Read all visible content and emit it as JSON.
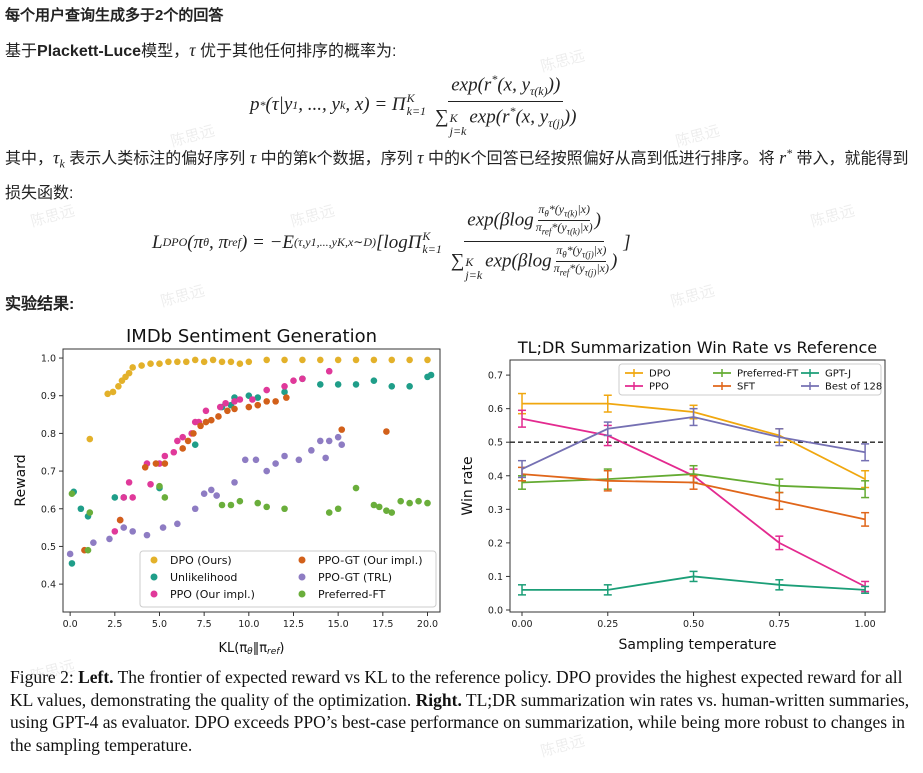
{
  "heading": "每个用户查询生成多于2个的回答",
  "paragraph_1": [
    "基于",
    "Plackett-Luce",
    "模型，",
    "τ",
    " 优于其他任何排序的概率为:"
  ],
  "formula_1": {
    "lhs": [
      "p",
      "*",
      "(τ|y",
      "1",
      ", ..., y",
      "k",
      ", x) = Π",
      "K",
      "k=1"
    ],
    "numerator": [
      "exp(r",
      "*",
      "(x, y",
      "τ(k)",
      "))"
    ],
    "denominator": [
      "∑",
      "K",
      "j=k",
      "exp(r",
      "*",
      "(x, y",
      "τ(j)",
      "))"
    ]
  },
  "paragraph_2": [
    "其中，",
    "τ",
    "k",
    " 表示人类标注的偏好序列 ",
    "τ",
    " 中的第k个数据，序列 ",
    "τ",
    " 中的K个回答已经按照偏好从高到低进行排序。将 ",
    "r",
    "*",
    " 带入，就能得到损失函数:"
  ],
  "formula_2": {
    "lhs": [
      "L",
      "DPO",
      "(π",
      "θ",
      ", π",
      "ref",
      ") = −E",
      "(τ,y1,...,yK,x∼D)",
      "[logΠ",
      "K",
      "k=1"
    ],
    "numerator": {
      "pre": "exp(βlog",
      "top": [
        "π",
        "θ",
        "*(y",
        "τ(k)",
        "|x)"
      ],
      "bottom": [
        "π",
        "ref",
        "*(y",
        "τ(k)",
        "|x)"
      ],
      "post": ")"
    },
    "denominator": {
      "sum": "∑",
      "upper": "K",
      "lower": "j=k",
      "pre": "exp(βlog",
      "top": [
        "π",
        "θ",
        "*(y",
        "τ(j)",
        "|x)"
      ],
      "bottom": [
        "π",
        "ref",
        "*(y",
        "τ(j)",
        "|x)"
      ],
      "post": ")"
    },
    "close": "]"
  },
  "results_heading": "实验结果:",
  "watermark": "陈思远",
  "caption": [
    "Figure 2: ",
    "Left.",
    " The frontier of expected reward vs KL to the reference policy. DPO provides the highest expected reward for all KL values, demonstrating the quality of the optimization. ",
    "Right.",
    " TL;DR summarization win rates vs. human-written summaries, using GPT-4 as evaluator. DPO exceeds PPO’s best-case performance on summarization, while being more robust to changes in the sampling temperature."
  ],
  "chart_data": [
    {
      "type": "scatter",
      "title": "IMDb Sentiment Generation",
      "xlabel": [
        "KL(π",
        "θ",
        "‖π",
        "ref",
        ")"
      ],
      "ylabel": "Reward",
      "xlim": [
        -0.4,
        20.7
      ],
      "ylim": [
        0.326,
        1.024
      ],
      "xticks": [
        {
          "value": 0,
          "label": "0.0"
        },
        2.5,
        {
          "value": 5,
          "label": "5.0"
        },
        7.5,
        {
          "value": 10,
          "label": "10.0"
        },
        12.5,
        {
          "value": 15,
          "label": "15.0"
        },
        17.5,
        {
          "value": 20,
          "label": "20.0"
        }
      ],
      "yticks": [
        0.4,
        0.5,
        0.6,
        0.7,
        0.8,
        0.9,
        {
          "value": 1,
          "label": "1.0"
        }
      ],
      "legend": "lower right",
      "legend_columns": 2,
      "series": [
        {
          "name": "DPO (Ours)",
          "color": "#e3b12a",
          "x": [
            1.1,
            2.1,
            2.4,
            2.7,
            2.9,
            3.1,
            3.3,
            3.5,
            4.0,
            4.5,
            5.0,
            5.5,
            6.0,
            6.5,
            7.0,
            7.5,
            8.0,
            8.5,
            9.0,
            9.5,
            10,
            11,
            12,
            13,
            14,
            15,
            16,
            17,
            18,
            19,
            20
          ],
          "values": [
            0.785,
            0.905,
            0.91,
            0.925,
            0.94,
            0.95,
            0.96,
            0.975,
            0.98,
            0.985,
            0.985,
            0.99,
            0.99,
            0.99,
            0.995,
            0.99,
            0.995,
            0.99,
            0.99,
            0.985,
            0.99,
            0.995,
            0.995,
            0.995,
            0.995,
            0.995,
            0.995,
            0.995,
            0.995,
            0.995,
            0.995
          ]
        },
        {
          "name": "Unlikelihood",
          "color": "#1f9e89",
          "x": [
            0.1,
            0.2,
            0.6,
            1.0,
            2.5,
            3.0,
            5.0,
            7.0,
            8.5,
            9.0,
            9.2,
            10,
            10.5,
            12,
            13,
            14,
            15,
            16,
            17,
            18,
            19,
            20,
            20.2
          ],
          "values": [
            0.455,
            0.645,
            0.6,
            0.58,
            0.63,
            0.63,
            0.655,
            0.77,
            0.87,
            0.875,
            0.895,
            0.9,
            0.895,
            0.91,
            0.945,
            0.93,
            0.93,
            0.93,
            0.94,
            0.925,
            0.925,
            0.95,
            0.955
          ]
        },
        {
          "name": "PPO (Our impl.)",
          "color": "#e0399a",
          "x": [
            2.5,
            2.8,
            3.0,
            3.3,
            3.5,
            4.3,
            4.5,
            5.0,
            5.3,
            5.8,
            6.0,
            6.3,
            6.8,
            7.0,
            7.2,
            7.6,
            8.4,
            8.7,
            9.2,
            9.5,
            10.2,
            11,
            12,
            12.5,
            13,
            14.5
          ],
          "values": [
            0.54,
            0.57,
            0.63,
            0.67,
            0.63,
            0.72,
            0.665,
            0.72,
            0.74,
            0.75,
            0.78,
            0.79,
            0.8,
            0.83,
            0.83,
            0.86,
            0.87,
            0.88,
            0.885,
            0.89,
            0.89,
            0.915,
            0.925,
            0.94,
            0.945,
            0.965
          ]
        },
        {
          "name": "PPO-GT (Our impl.)",
          "color": "#d2601a",
          "x": [
            0.8,
            2.8,
            4.2,
            4.8,
            5.3,
            6.3,
            6.6,
            6.9,
            7.3,
            7.6,
            7.9,
            8.3,
            8.8,
            9.2,
            10,
            10.5,
            11,
            11.5,
            12.1,
            15.2,
            17.7
          ],
          "values": [
            0.49,
            0.57,
            0.71,
            0.72,
            0.72,
            0.76,
            0.78,
            0.8,
            0.82,
            0.83,
            0.835,
            0.845,
            0.86,
            0.865,
            0.87,
            0.875,
            0.885,
            0.885,
            0.895,
            0.81,
            0.805
          ]
        },
        {
          "name": "PPO-GT (TRL)",
          "color": "#8e7cc3",
          "x": [
            0,
            1.3,
            2.2,
            3.0,
            3.5,
            4.3,
            5.2,
            6.0,
            7.0,
            7.5,
            7.9,
            8.2,
            9.2,
            9.8,
            10.4,
            11,
            11.5,
            12,
            12.8,
            13.5,
            14,
            14.3,
            14.5,
            15,
            15.2
          ],
          "values": [
            0.48,
            0.51,
            0.52,
            0.55,
            0.54,
            0.53,
            0.55,
            0.56,
            0.6,
            0.64,
            0.65,
            0.635,
            0.67,
            0.73,
            0.73,
            0.7,
            0.72,
            0.74,
            0.73,
            0.755,
            0.78,
            0.735,
            0.78,
            0.79,
            0.77
          ]
        },
        {
          "name": "Preferred-FT",
          "color": "#6aae3b",
          "x": [
            0.1,
            1.0,
            1.1,
            5.0,
            5.3,
            8.5,
            9.0,
            9.5,
            10.5,
            11,
            12,
            14.5,
            15,
            16,
            17,
            17.3,
            17.7,
            18,
            18.5,
            19,
            19.5,
            20
          ],
          "values": [
            0.64,
            0.49,
            0.59,
            0.66,
            0.63,
            0.61,
            0.61,
            0.62,
            0.615,
            0.605,
            0.6,
            0.59,
            0.6,
            0.655,
            0.61,
            0.605,
            0.595,
            0.59,
            0.62,
            0.615,
            0.62,
            0.615
          ]
        }
      ]
    },
    {
      "type": "line",
      "title": "TL;DR Summarization Win Rate vs Reference",
      "xlabel": "Sampling temperature",
      "ylabel": "Win rate",
      "x": [
        0,
        0.25,
        0.5,
        0.75,
        1
      ],
      "xlim": [
        -0.035,
        1.058
      ],
      "ylim": [
        -0.006,
        0.745
      ],
      "xticks": [
        {
          "value": 0,
          "label": "0.00"
        },
        0.25,
        {
          "value": 0.5,
          "label": "0.50"
        },
        0.75,
        {
          "value": 1,
          "label": "1.00"
        }
      ],
      "yticks": [
        {
          "value": 0,
          "label": "0.0"
        },
        0.1,
        0.2,
        0.3,
        0.4,
        0.5,
        0.6,
        0.7
      ],
      "hline": 0.5,
      "legend": "upper right",
      "legend_columns": 3,
      "series": [
        {
          "name": "DPO",
          "color": "#f0a70f",
          "values": [
            0.615,
            0.615,
            0.59,
            0.52,
            0.39
          ],
          "errors": [
            0.03,
            0.025,
            0.02,
            0.02,
            0.025
          ]
        },
        {
          "name": "PPO",
          "color": "#e32a8f",
          "values": [
            0.57,
            0.52,
            0.4,
            0.2,
            0.07
          ],
          "errors": [
            0.025,
            0.03,
            0.02,
            0.02,
            0.015
          ]
        },
        {
          "name": "Preferred-FT",
          "color": "#64ab32",
          "values": [
            0.38,
            0.39,
            0.405,
            0.37,
            0.36
          ],
          "errors": [
            0.02,
            0.03,
            0.025,
            0.02,
            0.025
          ]
        },
        {
          "name": "SFT",
          "color": "#e0661a",
          "values": [
            0.405,
            0.385,
            0.38,
            0.325,
            0.27
          ],
          "errors": [
            0.02,
            0.03,
            0.02,
            0.025,
            0.02
          ]
        },
        {
          "name": "GPT-J",
          "color": "#1b9e77",
          "values": [
            0.06,
            0.06,
            0.1,
            0.075,
            0.06
          ],
          "errors": [
            0.015,
            0.015,
            0.015,
            0.015,
            0.01
          ]
        },
        {
          "name": "Best of 128",
          "color": "#7570b3",
          "values": [
            0.42,
            0.54,
            0.575,
            0.515,
            0.47
          ],
          "errors": [
            0.025,
            0.02,
            0.025,
            0.025,
            0.025
          ]
        }
      ]
    }
  ]
}
